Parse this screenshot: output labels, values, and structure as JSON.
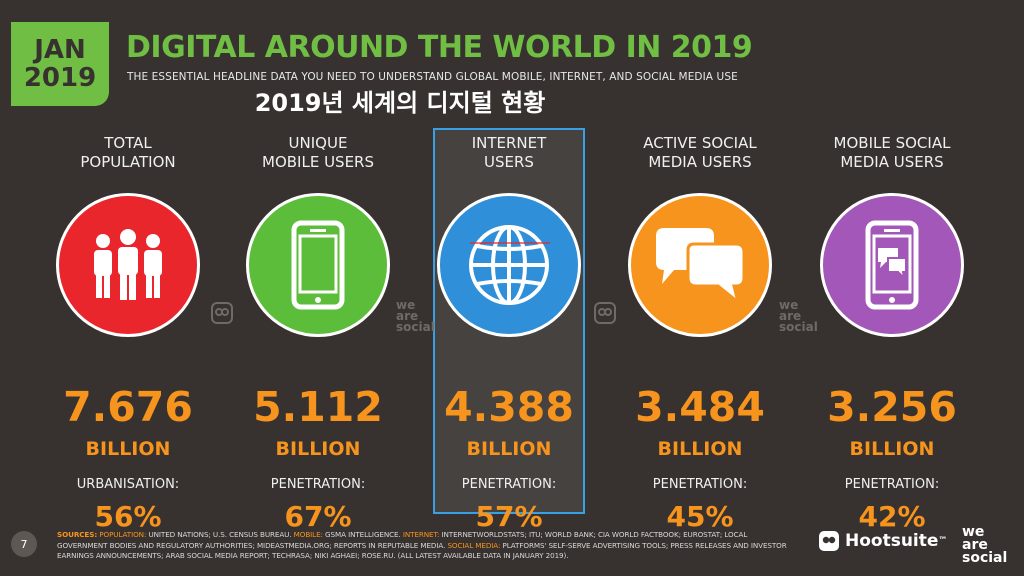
{
  "header": {
    "date_line1": "JAN",
    "date_line2": "2019",
    "title": "DIGITAL AROUND THE WORLD IN 2019",
    "subtitle": "THE ESSENTIAL HEADLINE DATA YOU NEED TO UNDERSTAND GLOBAL MOBILE, INTERNET, AND SOCIAL MEDIA USE",
    "korean_title": "2019년 세계의 디지털 현황"
  },
  "colors": {
    "background": "#37322f",
    "accent_green": "#70bf44",
    "accent_orange": "#f7941d",
    "highlight_blue": "#3aa0e6"
  },
  "columns": [
    {
      "label_line1": "TOTAL",
      "label_line2": "POPULATION",
      "icon": "people-icon",
      "color": "#e8262b",
      "value": "7.676",
      "unit": "BILLION",
      "metric_label": "URBANISATION:",
      "metric_value": "56%"
    },
    {
      "label_line1": "UNIQUE",
      "label_line2": "MOBILE USERS",
      "icon": "mobile-phone-icon",
      "color": "#5cbd3a",
      "value": "5.112",
      "unit": "BILLION",
      "metric_label": "PENETRATION:",
      "metric_value": "67%"
    },
    {
      "label_line1": "INTERNET",
      "label_line2": "USERS",
      "icon": "globe-icon",
      "color": "#2f8fd8",
      "value": "4.388",
      "unit": "BILLION",
      "metric_label": "PENETRATION:",
      "metric_value": "57%"
    },
    {
      "label_line1": "ACTIVE SOCIAL",
      "label_line2": "MEDIA USERS",
      "icon": "speech-bubbles-icon",
      "color": "#f7941d",
      "value": "3.484",
      "unit": "BILLION",
      "metric_label": "PENETRATION:",
      "metric_value": "45%"
    },
    {
      "label_line1": "MOBILE SOCIAL",
      "label_line2": "MEDIA USERS",
      "icon": "mobile-chat-icon",
      "color": "#a357b8",
      "value": "3.256",
      "unit": "BILLION",
      "metric_label": "PENETRATION:",
      "metric_value": "42%"
    }
  ],
  "watermarks": {
    "we_are_social_lines": [
      "we",
      "are",
      "social"
    ]
  },
  "footer": {
    "page_number": "7",
    "sources_label": "SOURCES:",
    "population_label": "POPULATION:",
    "population_text": "UNITED NATIONS; U.S. CENSUS BUREAU.",
    "mobile_label": "MOBILE:",
    "mobile_text": "GSMA INTELLIGENCE.",
    "internet_label": "INTERNET:",
    "internet_text": "INTERNETWORLDSTATS; ITU; WORLD BANK; CIA WORLD FACTBOOK; EUROSTAT; LOCAL GOVERNMENT BODIES AND REGULATORY AUTHORITIES; MIDEASTMEDIA.ORG; REPORTS IN REPUTABLE MEDIA.",
    "social_label": "SOCIAL MEDIA:",
    "social_text": "PLATFORMS' SELF-SERVE ADVERTISING TOOLS; PRESS RELEASES AND INVESTOR EARNINGS ANNOUNCEMENTS; ARAB SOCIAL MEDIA REPORT; TECHRASA; NIKI AGHAEI; ROSE.RU. (ALL LATEST AVAILABLE DATA IN JANUARY 2019).",
    "hootsuite_label": "Hootsuite",
    "tm": "™",
    "was_lines": [
      "we",
      "are",
      "social"
    ]
  }
}
